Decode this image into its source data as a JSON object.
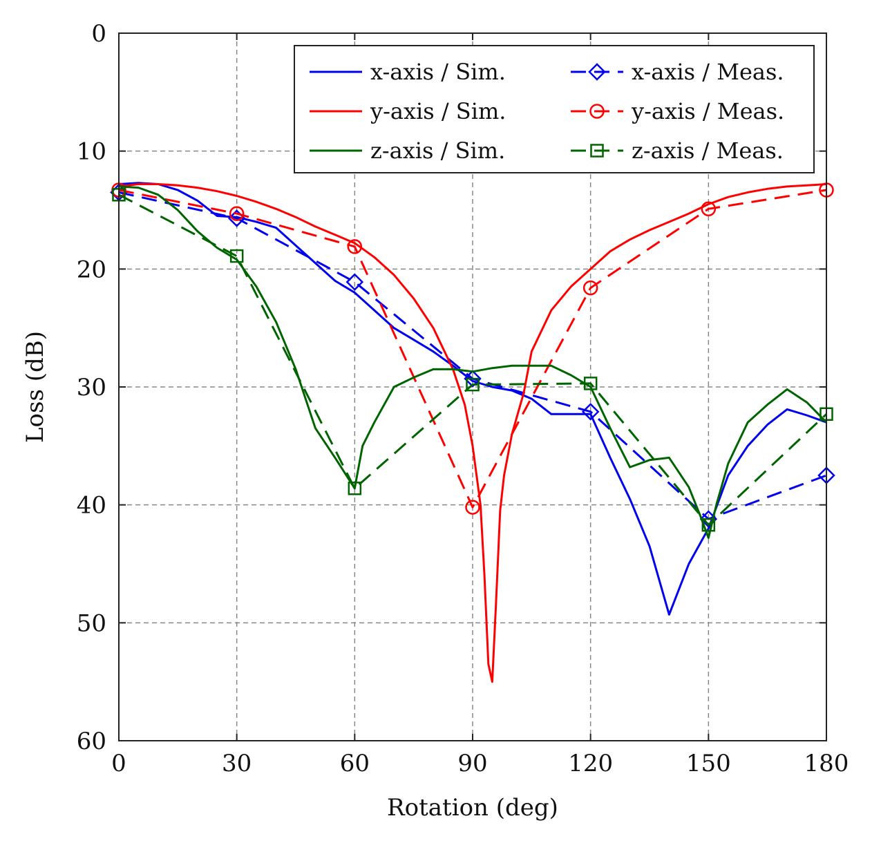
{
  "chart_data": {
    "type": "line",
    "xlabel": "Rotation (deg)",
    "ylabel": "Loss (dB)",
    "xlim": [
      0,
      180
    ],
    "ylim": [
      0,
      60
    ],
    "y_inverted": true,
    "grid": true,
    "legend_position": "top-right",
    "x_ticks": [
      0,
      30,
      60,
      90,
      120,
      150,
      180
    ],
    "y_ticks": [
      0,
      10,
      20,
      30,
      40,
      50,
      60
    ],
    "x_tick_labels": [
      "0",
      "30",
      "60",
      "90",
      "120",
      "150",
      "180"
    ],
    "y_tick_labels": [
      "0",
      "10",
      "20",
      "30",
      "40",
      "50",
      "60"
    ],
    "series": [
      {
        "name": "x-axis / Sim.",
        "color": "#0000ee",
        "style": "solid",
        "marker": "none",
        "x": [
          0,
          5,
          10,
          15,
          20,
          25,
          30,
          35,
          40,
          45,
          50,
          55,
          60,
          65,
          70,
          75,
          80,
          85,
          90,
          95,
          100,
          105,
          110,
          115,
          120,
          125,
          130,
          135,
          140,
          145,
          150,
          155,
          160,
          165,
          170,
          175,
          180
        ],
        "y": [
          12.8,
          12.7,
          12.8,
          13.3,
          14.2,
          15.5,
          15.6,
          16.0,
          16.5,
          18.0,
          19.5,
          21.0,
          22.0,
          23.5,
          25.0,
          26.0,
          27.0,
          28.2,
          29.5,
          30.0,
          30.3,
          31.0,
          32.3,
          32.3,
          32.3,
          36.0,
          39.5,
          43.5,
          49.3,
          45.0,
          42.0,
          37.5,
          35.0,
          33.2,
          31.9,
          32.4,
          33.0
        ]
      },
      {
        "name": "x-axis / Meas.",
        "color": "#0000ee",
        "style": "dashed",
        "marker": "diamond",
        "x": [
          0,
          30,
          60,
          90,
          120,
          150,
          180
        ],
        "y": [
          13.5,
          15.7,
          21.1,
          29.3,
          32.1,
          41.2,
          37.5
        ]
      },
      {
        "name": "y-axis / Sim.",
        "color": "#ff0000",
        "style": "solid",
        "marker": "none",
        "x": [
          0,
          5,
          10,
          15,
          20,
          25,
          30,
          35,
          40,
          45,
          50,
          55,
          60,
          65,
          70,
          75,
          80,
          85,
          88,
          90,
          92,
          93,
          94,
          95,
          96,
          97,
          98,
          100,
          103,
          105,
          110,
          115,
          120,
          125,
          130,
          135,
          140,
          145,
          150,
          155,
          160,
          165,
          170,
          175,
          180
        ],
        "y": [
          13.0,
          12.8,
          12.8,
          12.9,
          13.1,
          13.4,
          13.8,
          14.3,
          14.9,
          15.6,
          16.4,
          17.1,
          17.8,
          19.0,
          20.5,
          22.5,
          25.0,
          28.5,
          31.5,
          35.0,
          40.0,
          46.0,
          53.5,
          55.0,
          48.0,
          40.5,
          37.5,
          34.0,
          30.5,
          27.0,
          23.5,
          21.5,
          20.0,
          18.5,
          17.5,
          16.7,
          16.0,
          15.3,
          14.5,
          13.9,
          13.5,
          13.2,
          13.0,
          12.9,
          12.8
        ]
      },
      {
        "name": "y-axis / Meas.",
        "color": "#ff0000",
        "style": "dashed",
        "marker": "circle",
        "x": [
          0,
          30,
          60,
          90,
          120,
          150,
          180
        ],
        "y": [
          13.3,
          15.3,
          18.1,
          40.2,
          21.6,
          14.9,
          13.3
        ]
      },
      {
        "name": "z-axis / Sim.",
        "color": "#006400",
        "style": "solid",
        "marker": "none",
        "x": [
          0,
          5,
          10,
          15,
          20,
          25,
          30,
          35,
          40,
          45,
          50,
          55,
          60,
          62,
          65,
          70,
          75,
          80,
          85,
          90,
          95,
          100,
          105,
          110,
          115,
          120,
          125,
          130,
          135,
          140,
          145,
          148,
          150,
          152,
          155,
          160,
          165,
          170,
          175,
          180
        ],
        "y": [
          13.0,
          13.1,
          13.7,
          15.0,
          16.8,
          18.2,
          19.2,
          21.5,
          24.5,
          28.5,
          33.5,
          36.0,
          38.6,
          35.0,
          33.0,
          30.0,
          29.2,
          28.5,
          28.5,
          28.7,
          28.4,
          28.2,
          28.2,
          28.2,
          29.0,
          30.0,
          33.5,
          36.8,
          36.2,
          36.0,
          38.5,
          41.0,
          42.8,
          40.0,
          36.5,
          33.0,
          31.5,
          30.2,
          31.3,
          33.0
        ]
      },
      {
        "name": "z-axis / Meas.",
        "color": "#006400",
        "style": "dashed",
        "marker": "square",
        "x": [
          0,
          30,
          60,
          90,
          120,
          150,
          180
        ],
        "y": [
          13.7,
          18.9,
          38.6,
          29.8,
          29.7,
          41.7,
          32.3
        ]
      }
    ]
  }
}
